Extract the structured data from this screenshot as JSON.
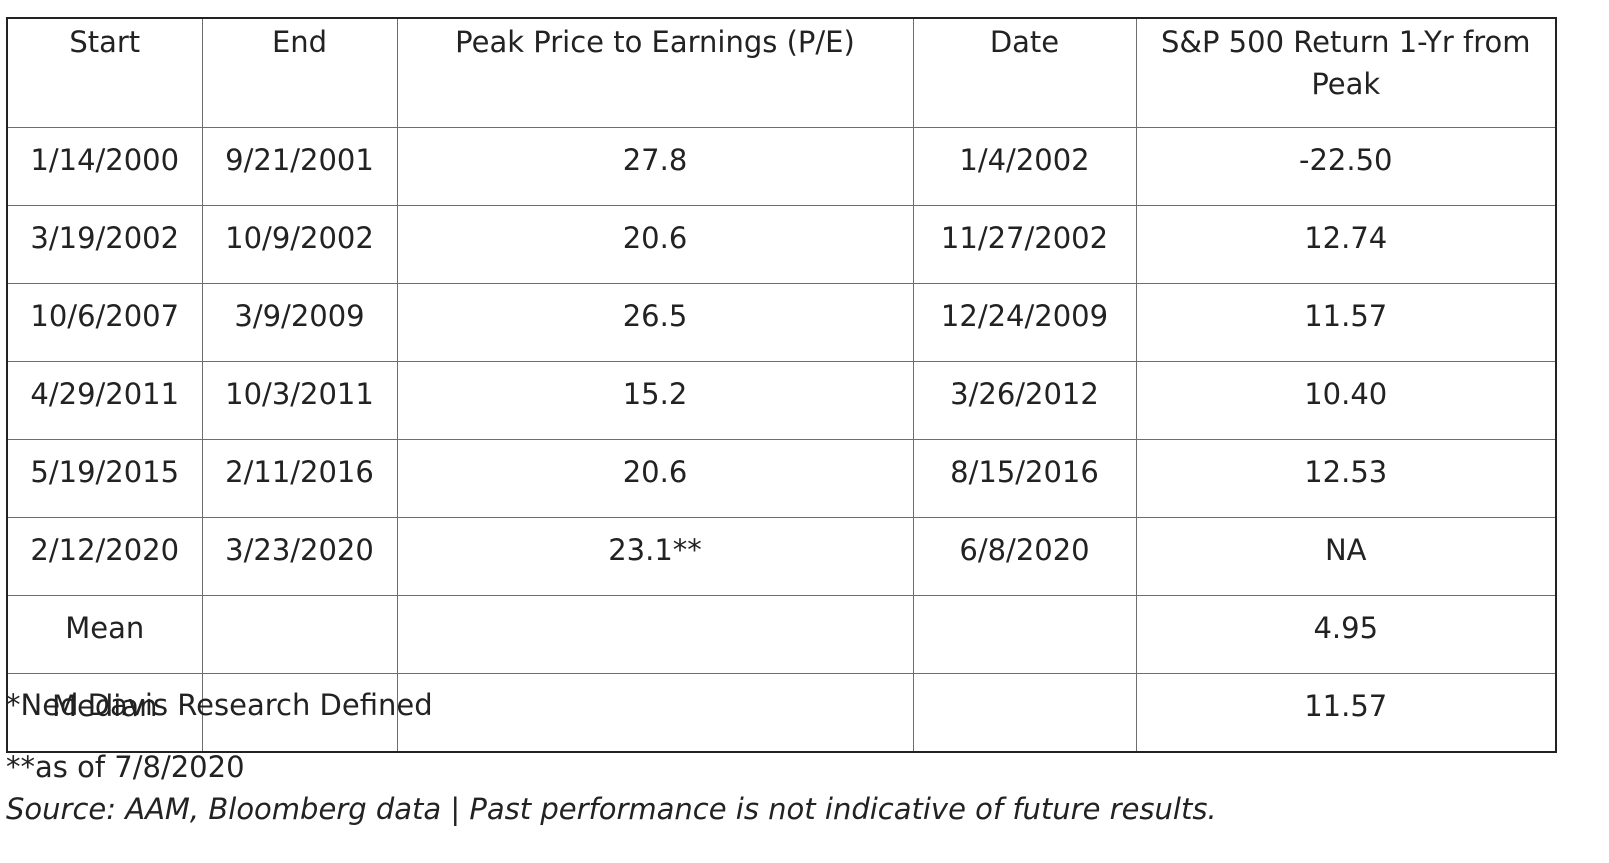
{
  "table": {
    "headers": [
      "Start",
      "End",
      "Peak Price to Earnings (P/E)",
      "Date",
      "S&P 500 Return 1-Yr from Peak"
    ],
    "rows": [
      [
        "1/14/2000",
        "9/21/2001",
        "27.8",
        "1/4/2002",
        "-22.50"
      ],
      [
        "3/19/2002",
        "10/9/2002",
        "20.6",
        "11/27/2002",
        "12.74"
      ],
      [
        "10/6/2007",
        "3/9/2009",
        "26.5",
        "12/24/2009",
        "11.57"
      ],
      [
        "4/29/2011",
        "10/3/2011",
        "15.2",
        "3/26/2012",
        "10.40"
      ],
      [
        "5/19/2015",
        "2/11/2016",
        "20.6",
        "8/15/2016",
        "12.53"
      ],
      [
        "2/12/2020",
        "3/23/2020",
        "23.1**",
        "6/8/2020",
        "NA"
      ],
      [
        "Mean",
        "",
        "",
        "",
        "4.95"
      ],
      [
        "Median",
        "",
        "",
        "",
        "11.57"
      ]
    ]
  },
  "footnotes": {
    "note1": "*Ned Davis Research Defined",
    "note2": "**as of 7/8/2020",
    "source": "Source: AAM, Bloomberg data | Past performance is not indicative of future results."
  }
}
